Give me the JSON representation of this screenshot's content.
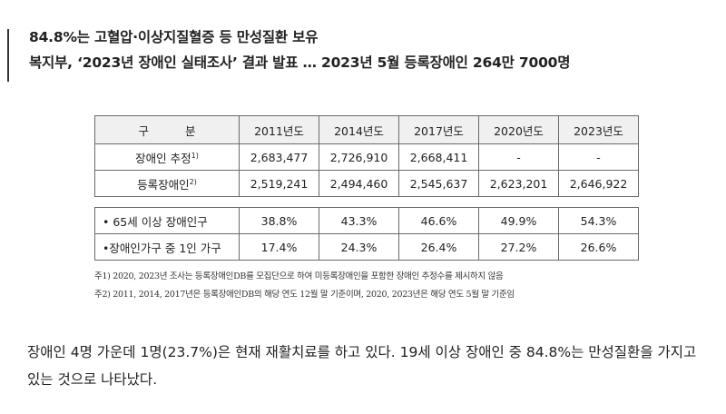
{
  "subtitle": {
    "line1": "84.8%는 고혈압·이상지질혈증 등 만성질환 보유",
    "line2": "복지부, ‘2023년 장애인 실태조사’ 결과 발표 … 2023년 5월 등록장애인 264만 7000명"
  },
  "table": {
    "header_label": "구 분",
    "columns": [
      "2011년도",
      "2014년도",
      "2017년도",
      "2020년도",
      "2023년도"
    ],
    "rows": [
      {
        "label": "장애인 추정",
        "footnote": "1)",
        "values": [
          "2,683,477",
          "2,726,910",
          "2,668,411",
          "-",
          "-"
        ]
      },
      {
        "label": "등록장애인",
        "footnote": "2)",
        "values": [
          "2,519,241",
          "2,494,460",
          "2,545,637",
          "2,623,201",
          "2,646,922"
        ]
      }
    ],
    "sub_rows": [
      {
        "label": "• 65세 이상 장애인구",
        "values": [
          "38.8%",
          "43.3%",
          "46.6%",
          "49.9%",
          "54.3%"
        ]
      },
      {
        "label": "•장애인가구 중 1인 가구",
        "values": [
          "17.4%",
          "24.3%",
          "26.4%",
          "27.2%",
          "26.6%"
        ]
      }
    ],
    "notes": [
      "주1) 2020, 2023년 조사는 등록장애인DB를 모집단으로 하여 미등록장애인을 포함한 장애인 추정수를 제시하지 않음",
      "주2) 2011, 2014, 2017년은 등록장애인DB의 해당 연도 12월 말 기준이며, 2020, 2023년은 해당 연도 5월 말 기준임"
    ]
  },
  "body": {
    "paragraph": "장애인 4명 가운데 1명(23.7%)은 현재 재활치료를 하고 있다. 19세 이상 장애인 중 84.8%는 만성질환을 가지고 있는 것으로 나타났다."
  }
}
